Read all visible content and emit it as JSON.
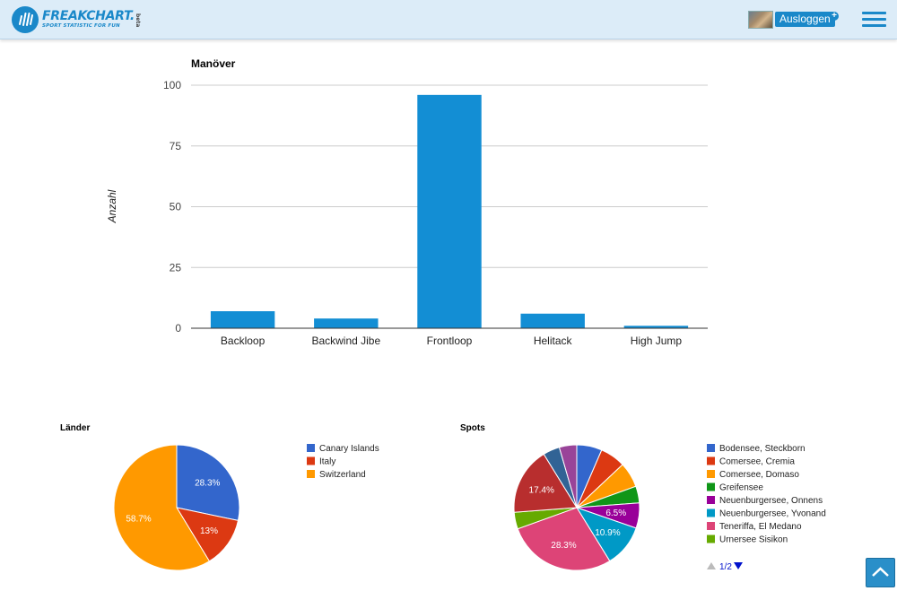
{
  "header": {
    "logo_text": "FREAKCHART.",
    "logo_tagline": "SPORT STATISTIC FOR FUN",
    "logo_badge": "beta",
    "logout_label": "Ausloggen",
    "plus_icon": "plus-circle-icon",
    "menu_icon": "hamburger-menu-icon"
  },
  "colors": {
    "accent": "#1a88c9",
    "bar": "#138ed4"
  },
  "chart_data": [
    {
      "type": "bar",
      "title": "Manöver",
      "ylabel": "Anzahl",
      "xlabel": "",
      "categories": [
        "Backloop",
        "Backwind Jibe",
        "Frontloop",
        "Helitack",
        "High Jump"
      ],
      "values": [
        7,
        4,
        96,
        6,
        1
      ],
      "ylim": [
        0,
        100
      ],
      "yticks": [
        0,
        25,
        50,
        75,
        100
      ],
      "grid": true,
      "color": "#138ed4"
    },
    {
      "type": "pie",
      "title": "Länder",
      "legend_position": "right",
      "slices": [
        {
          "label": "Canary Islands",
          "value": 28.3,
          "display": "28.3%",
          "color": "#3366cc"
        },
        {
          "label": "Italy",
          "value": 13.0,
          "display": "13%",
          "color": "#dc3912"
        },
        {
          "label": "Switzerland",
          "value": 58.7,
          "display": "58.7%",
          "color": "#ff9900"
        }
      ]
    },
    {
      "type": "pie",
      "title": "Spots",
      "legend_position": "right",
      "legend_page": "1/2",
      "legend": [
        {
          "label": "Bodensee, Steckborn",
          "color": "#3366cc"
        },
        {
          "label": "Comersee, Cremia",
          "color": "#dc3912"
        },
        {
          "label": "Comersee, Domaso",
          "color": "#ff9900"
        },
        {
          "label": "Greifensee",
          "color": "#109618"
        },
        {
          "label": "Neuenburgersee, Onnens",
          "color": "#990099"
        },
        {
          "label": "Neuenburgersee, Yvonand",
          "color": "#0099c6"
        },
        {
          "label": "Teneriffa, El Medano",
          "color": "#dd4477"
        },
        {
          "label": "Urnersee Sisikon",
          "color": "#66aa00"
        }
      ],
      "slices": [
        {
          "label": "Bodensee, Steckborn",
          "value": 6.5,
          "display": "",
          "color": "#3366cc"
        },
        {
          "label": "Comersee, Cremia",
          "value": 6.5,
          "display": "",
          "color": "#dc3912"
        },
        {
          "label": "Comersee, Domaso",
          "value": 6.5,
          "display": "",
          "color": "#ff9900"
        },
        {
          "label": "Greifensee",
          "value": 4.3,
          "display": "",
          "color": "#109618"
        },
        {
          "label": "Neuenburgersee, Onnens",
          "value": 6.5,
          "display": "6.5%",
          "color": "#990099"
        },
        {
          "label": "Neuenburgersee, Yvonand",
          "value": 10.9,
          "display": "10.9%",
          "color": "#0099c6"
        },
        {
          "label": "Teneriffa, El Medano",
          "value": 28.3,
          "display": "28.3%",
          "color": "#dd4477"
        },
        {
          "label": "Urnersee Sisikon",
          "value": 4.3,
          "display": "",
          "color": "#66aa00"
        },
        {
          "label": "",
          "value": 17.4,
          "display": "17.4%",
          "color": "#b82e2e"
        },
        {
          "label": "",
          "value": 4.3,
          "display": "",
          "color": "#316395"
        },
        {
          "label": "",
          "value": 4.5,
          "display": "",
          "color": "#994499"
        }
      ]
    }
  ]
}
